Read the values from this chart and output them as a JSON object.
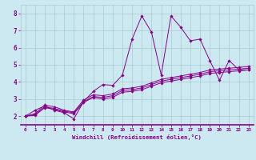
{
  "xlabel": "Windchill (Refroidissement éolien,°C)",
  "bg_color": "#cce8f0",
  "plot_bg_color": "#cce8f0",
  "line_color": "#880088",
  "grid_color": "#aacccc",
  "spine_bottom_color": "#880088",
  "tick_label_color": "#880088",
  "xlabel_color": "#880088",
  "xlim": [
    -0.5,
    23.5
  ],
  "ylim": [
    1.5,
    8.5
  ],
  "yticks": [
    2,
    3,
    4,
    5,
    6,
    7,
    8
  ],
  "xticks": [
    0,
    1,
    2,
    3,
    4,
    5,
    6,
    7,
    8,
    9,
    10,
    11,
    12,
    13,
    14,
    15,
    16,
    17,
    18,
    19,
    20,
    21,
    22,
    23
  ],
  "series": [
    [
      2.0,
      2.35,
      2.6,
      2.35,
      2.2,
      1.85,
      2.85,
      3.45,
      3.85,
      3.8,
      4.4,
      6.5,
      7.85,
      6.9,
      4.4,
      7.85,
      7.2,
      6.4,
      6.5,
      5.25,
      4.1,
      5.25,
      4.7,
      4.7
    ],
    [
      2.0,
      2.1,
      2.55,
      2.45,
      2.3,
      2.2,
      2.85,
      3.15,
      3.1,
      3.2,
      3.5,
      3.55,
      3.65,
      3.85,
      4.05,
      4.15,
      4.25,
      4.35,
      4.45,
      4.6,
      4.65,
      4.7,
      4.75,
      4.8
    ],
    [
      2.0,
      2.15,
      2.65,
      2.55,
      2.35,
      2.25,
      2.95,
      3.25,
      3.2,
      3.3,
      3.6,
      3.65,
      3.75,
      3.95,
      4.15,
      4.25,
      4.35,
      4.45,
      4.55,
      4.7,
      4.75,
      4.8,
      4.85,
      4.9
    ],
    [
      2.0,
      2.05,
      2.5,
      2.4,
      2.25,
      2.15,
      2.8,
      3.1,
      3.0,
      3.1,
      3.4,
      3.45,
      3.55,
      3.75,
      3.95,
      4.05,
      4.15,
      4.25,
      4.35,
      4.5,
      4.55,
      4.6,
      4.65,
      4.7
    ]
  ]
}
